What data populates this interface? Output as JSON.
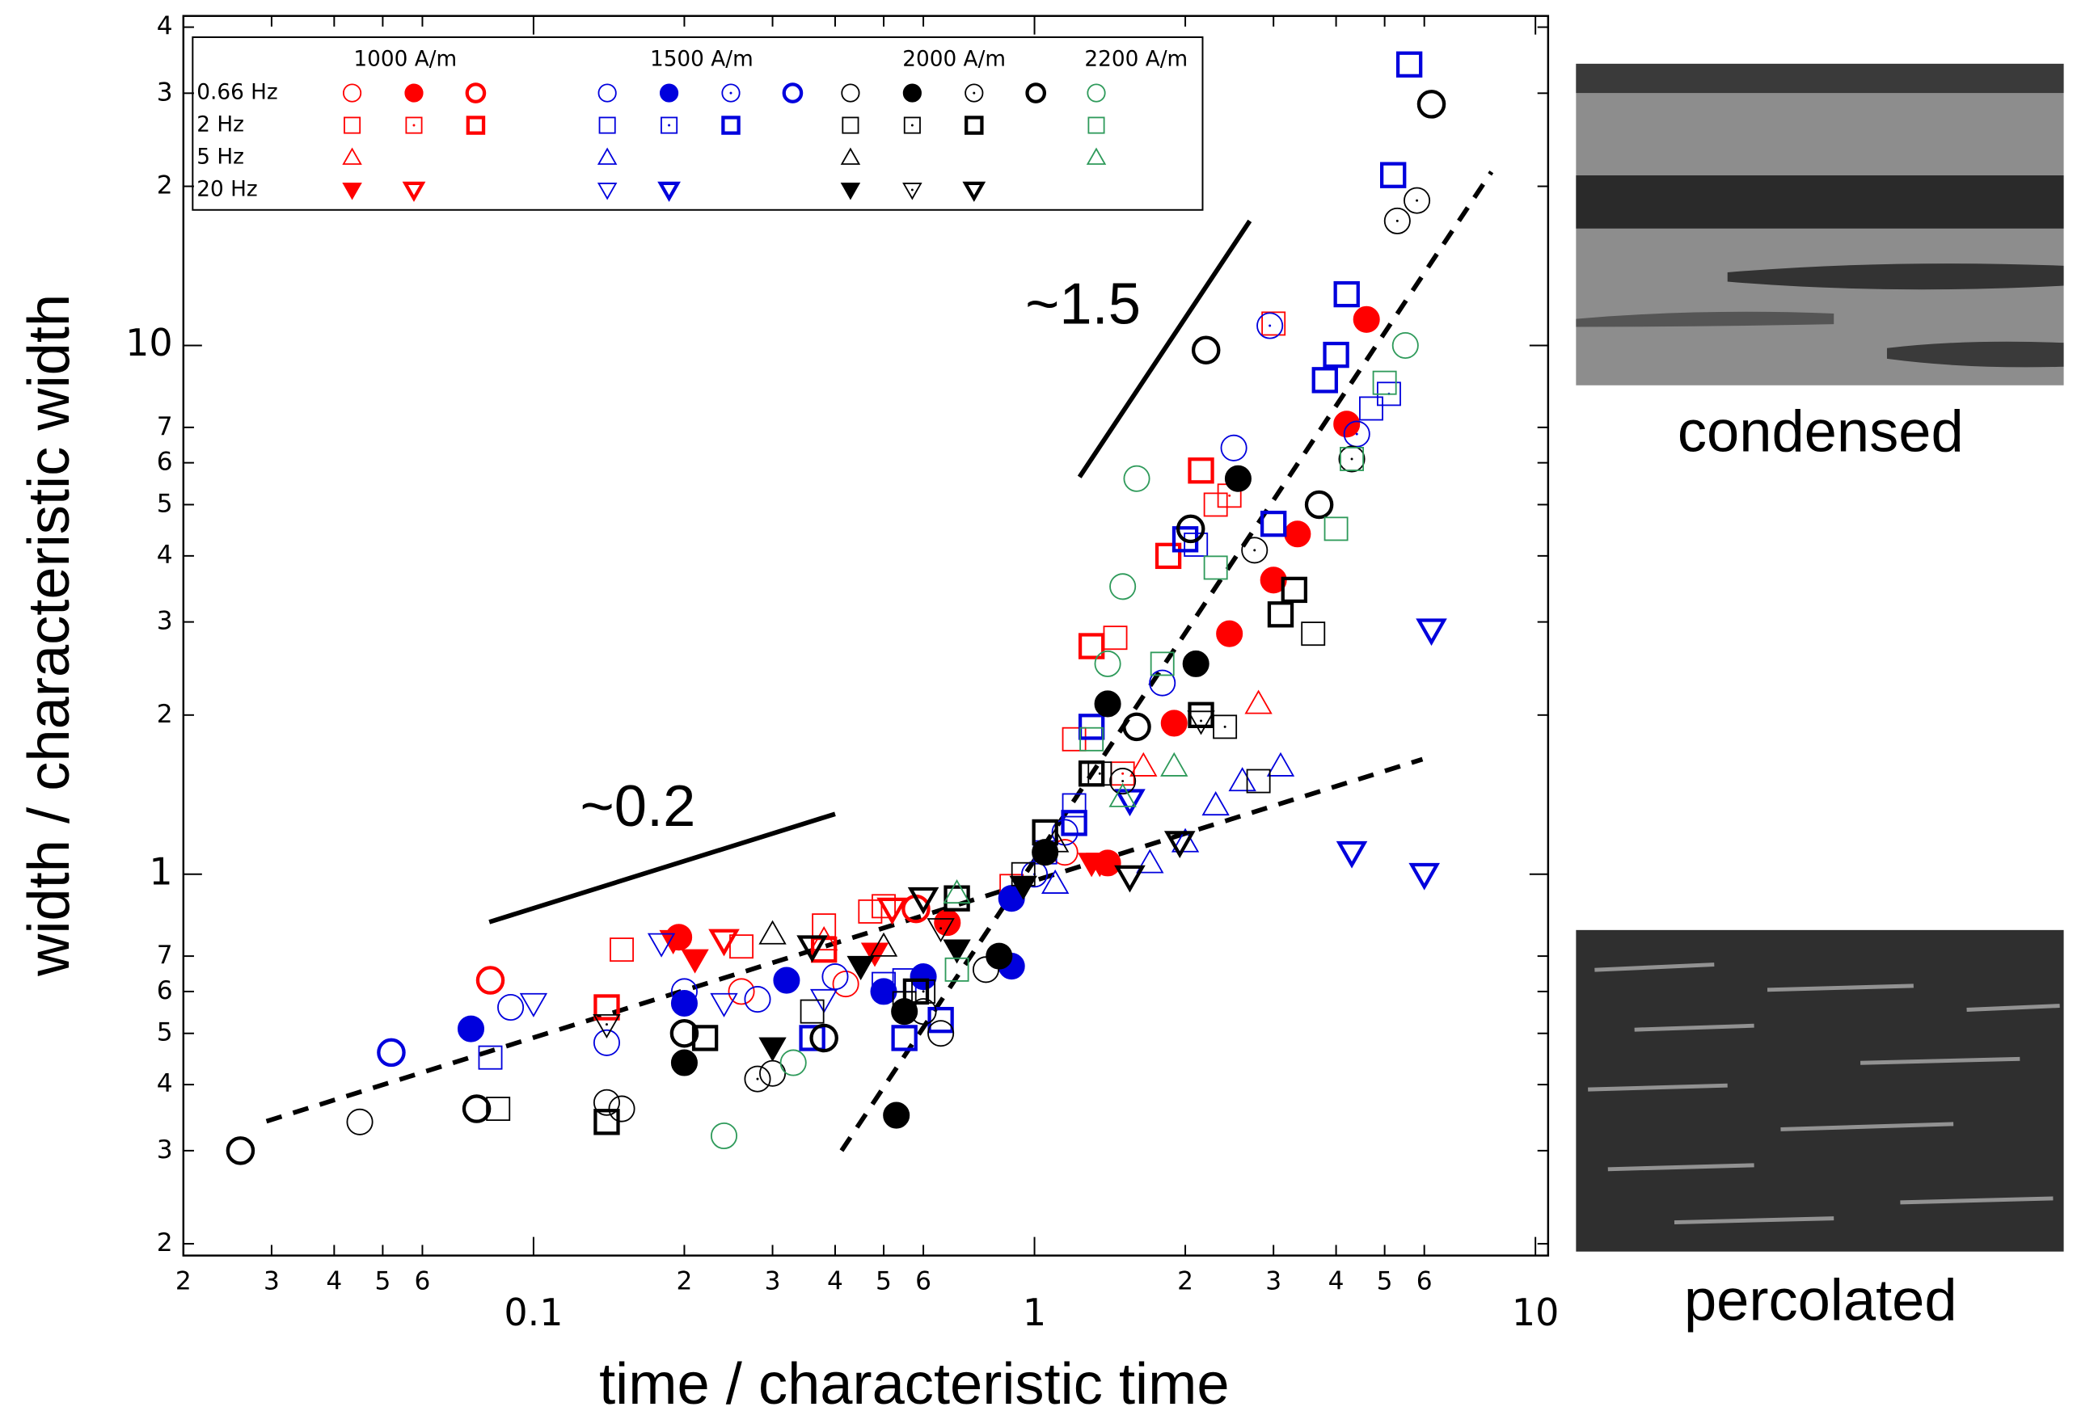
{
  "chart_data": {
    "type": "scatter",
    "x_label": "time / characteristic time",
    "y_label": "width / characteristic width",
    "xscale": "log",
    "yscale": "log",
    "xlim": [
      0.02,
      10.6
    ],
    "ylim": [
      0.19,
      42
    ],
    "xticks": [
      {
        "value": 0.02,
        "label": "2"
      },
      {
        "value": 0.03,
        "label": "3"
      },
      {
        "value": 0.04,
        "label": "4"
      },
      {
        "value": 0.05,
        "label": "5"
      },
      {
        "value": 0.06,
        "label": "6"
      },
      0.1,
      {
        "value": 0.2,
        "label": "2"
      },
      {
        "value": 0.3,
        "label": "3"
      },
      {
        "value": 0.4,
        "label": "4"
      },
      {
        "value": 0.5,
        "label": "5"
      },
      {
        "value": 0.6,
        "label": "6"
      },
      1,
      2,
      3,
      4,
      5,
      6,
      10
    ],
    "yticks": [
      {
        "value": 0.2,
        "label": "2"
      },
      {
        "value": 0.3,
        "label": "3"
      },
      {
        "value": 0.4,
        "label": "4"
      },
      {
        "value": 0.5,
        "label": "5"
      },
      {
        "value": 0.6,
        "label": "6"
      },
      {
        "value": 0.7,
        "label": "7"
      },
      1,
      2,
      3,
      4,
      5,
      6,
      7,
      10,
      {
        "value": 20,
        "label": "2"
      },
      {
        "value": 30,
        "label": "3"
      },
      {
        "value": 40,
        "label": "4"
      }
    ],
    "frequencies": [
      "0.66 Hz",
      "2 Hz",
      "5 Hz",
      "20 Hz"
    ],
    "fields": [
      {
        "name": "1000 A/m",
        "color": "#ff0000",
        "rows": [
          [
            {
              "marker": "circle",
              "style": "open",
              "x": [
                0.26,
                0.42,
                1.15
              ],
              "y": [
                0.6,
                0.62,
                1.1
              ]
            },
            {
              "marker": "circle",
              "style": "filled",
              "x": [
                0.195,
                0.67,
                1.4,
                1.9,
                2.45,
                3.0,
                3.35,
                4.2,
                4.6
              ],
              "y": [
                0.76,
                0.81,
                1.05,
                1.93,
                2.85,
                3.6,
                4.4,
                7.1,
                11.2
              ]
            },
            {
              "marker": "circle",
              "style": "thick",
              "x": [
                0.082,
                0.58
              ],
              "y": [
                0.63,
                0.86
              ]
            }
          ],
          [
            {
              "marker": "square",
              "style": "open",
              "x": [
                0.15,
                0.26,
                0.38,
                0.47,
                1.2,
                1.45,
                2.3,
                3.0
              ],
              "y": [
                0.72,
                0.73,
                0.8,
                0.85,
                1.8,
                2.8,
                5.0,
                11
              ]
            },
            {
              "marker": "square",
              "style": "dotted",
              "x": [
                0.5,
                0.9,
                1.5,
                2.45
              ],
              "y": [
                0.87,
                0.95,
                1.55,
                5.2
              ]
            },
            {
              "marker": "square",
              "style": "thick",
              "x": [
                0.14,
                0.38,
                1.3,
                1.85,
                2.15
              ],
              "y": [
                0.56,
                0.72,
                2.7,
                4.0,
                5.8
              ]
            }
          ],
          [
            {
              "marker": "triangle",
              "style": "open",
              "x": [
                0.38,
                1.65,
                2.8
              ],
              "y": [
                0.75,
                1.6,
                2.1
              ]
            }
          ],
          [
            {
              "marker": "down",
              "style": "filled",
              "x": [
                0.19,
                0.21,
                0.48,
                1.3,
                1.35
              ],
              "y": [
                0.75,
                0.69,
                0.71,
                1.05,
                1.05
              ]
            },
            {
              "marker": "down",
              "style": "thick",
              "x": [
                0.24,
                0.52
              ],
              "y": [
                0.75,
                0.86
              ]
            }
          ]
        ]
      },
      {
        "name": "1500 A/m",
        "color": "#0000dd",
        "rows": [
          [
            {
              "marker": "circle",
              "style": "open",
              "x": [
                0.09,
                0.14,
                0.2,
                0.28,
                0.4,
                1.15,
                1.8,
                2.5
              ],
              "y": [
                0.56,
                0.48,
                0.6,
                0.58,
                0.64,
                1.2,
                2.3,
                6.4
              ]
            },
            {
              "marker": "circle",
              "style": "filled",
              "x": [
                0.075,
                0.2,
                0.32,
                0.5,
                0.6,
                0.9,
                0.9
              ],
              "y": [
                0.51,
                0.57,
                0.63,
                0.6,
                0.64,
                0.67,
                0.9
              ]
            },
            {
              "marker": "circle",
              "style": "dotted",
              "x": [
                1.0,
                2.95,
                4.4
              ],
              "y": [
                1.0,
                10.9,
                6.8
              ]
            },
            {
              "marker": "circle",
              "style": "thick",
              "x": [
                0.052
              ],
              "y": [
                0.46
              ]
            }
          ],
          [
            {
              "marker": "square",
              "style": "open",
              "x": [
                0.082,
                0.5,
                1.2,
                2.1,
                4.7
              ],
              "y": [
                0.45,
                0.62,
                1.35,
                4.2,
                7.6
              ]
            },
            {
              "marker": "square",
              "style": "dotted",
              "x": [
                0.55,
                1.05,
                5.1
              ],
              "y": [
                0.63,
                1.1,
                8.1
              ]
            },
            {
              "marker": "square",
              "style": "thick",
              "x": [
                0.36,
                0.55,
                0.65,
                1.2,
                1.3,
                2.0,
                3.0,
                3.8,
                4.0,
                4.2,
                5.2,
                5.6
              ],
              "y": [
                0.49,
                0.49,
                0.53,
                1.25,
                1.9,
                4.3,
                4.6,
                8.6,
                9.6,
                12.5,
                21,
                34
              ]
            }
          ],
          [
            {
              "marker": "triangle",
              "style": "open",
              "x": [
                1.1,
                1.7,
                2.0,
                2.3,
                2.6,
                3.1
              ],
              "y": [
                0.96,
                1.05,
                1.15,
                1.35,
                1.5,
                1.6
              ]
            }
          ],
          [
            {
              "marker": "down",
              "style": "open",
              "x": [
                0.1,
                0.18,
                0.24,
                0.38
              ],
              "y": [
                0.57,
                0.74,
                0.57,
                0.58
              ]
            },
            {
              "marker": "down",
              "style": "thick",
              "x": [
                1.55,
                4.3,
                6.0,
                6.2
              ],
              "y": [
                1.38,
                1.1,
                1.0,
                2.9
              ]
            }
          ]
        ]
      },
      {
        "name": "2000 A/m",
        "color": "#000000",
        "rows": [
          [
            {
              "marker": "circle",
              "style": "open",
              "x": [
                0.045,
                0.14,
                0.15,
                0.3,
                0.6,
                0.65,
                0.8
              ],
              "y": [
                0.34,
                0.37,
                0.36,
                0.42,
                0.55,
                0.5,
                0.66
              ]
            },
            {
              "marker": "circle",
              "style": "filled",
              "x": [
                0.2,
                0.53,
                0.55,
                0.85,
                1.05,
                1.4,
                2.1,
                2.55
              ],
              "y": [
                0.44,
                0.35,
                0.55,
                0.7,
                1.1,
                2.1,
                2.5,
                5.6
              ]
            },
            {
              "marker": "circle",
              "style": "dotted",
              "x": [
                0.28,
                1.5,
                2.75,
                4.3,
                5.3,
                5.8
              ],
              "y": [
                0.41,
                1.5,
                4.1,
                6.1,
                17.2,
                18.8
              ]
            },
            {
              "marker": "circle",
              "style": "thick",
              "x": [
                0.026,
                0.077,
                0.2,
                0.38,
                1.6,
                2.05,
                2.2,
                3.7,
                6.2
              ],
              "y": [
                0.3,
                0.36,
                0.5,
                0.49,
                1.9,
                4.5,
                9.8,
                5.0,
                28.6
              ]
            }
          ],
          [
            {
              "marker": "square",
              "style": "open",
              "x": [
                0.085,
                0.36,
                0.55,
                0.95,
                2.8,
                3.6
              ],
              "y": [
                0.36,
                0.55,
                0.57,
                1.0,
                1.5,
                2.85
              ]
            },
            {
              "marker": "square",
              "style": "dotted",
              "x": [
                0.6,
                1.35,
                2.4
              ],
              "y": [
                0.6,
                1.55,
                1.9
              ]
            },
            {
              "marker": "square",
              "style": "thick",
              "x": [
                0.14,
                0.22,
                0.58,
                0.7,
                1.05,
                1.3,
                2.15,
                3.1,
                3.3
              ],
              "y": [
                0.34,
                0.49,
                0.6,
                0.9,
                1.2,
                1.55,
                2.0,
                3.1,
                3.45
              ]
            }
          ],
          [
            {
              "marker": "triangle",
              "style": "open",
              "x": [
                0.3,
                0.5,
                1.1
              ],
              "y": [
                0.77,
                0.73,
                1.15
              ]
            }
          ],
          [
            {
              "marker": "down",
              "style": "filled",
              "x": [
                0.3,
                0.45,
                0.7,
                0.95
              ],
              "y": [
                0.47,
                0.67,
                0.72,
                0.95
              ]
            },
            {
              "marker": "down",
              "style": "dotted",
              "x": [
                0.14,
                0.65,
                2.15
              ],
              "y": [
                0.52,
                0.79,
                1.95
              ]
            },
            {
              "marker": "down",
              "style": "thick",
              "x": [
                0.36,
                0.6,
                1.55,
                1.95
              ],
              "y": [
                0.73,
                0.9,
                0.99,
                1.15
              ]
            }
          ]
        ]
      },
      {
        "name": "2200 A/m",
        "color": "#2e9a5a",
        "rows": [
          [
            {
              "marker": "circle",
              "style": "open",
              "x": [
                0.24,
                0.33,
                1.4,
                1.5,
                1.6,
                5.5
              ],
              "y": [
                0.32,
                0.44,
                2.5,
                3.5,
                5.6,
                10
              ]
            }
          ],
          [
            {
              "marker": "square",
              "style": "open",
              "x": [
                0.7,
                1.3,
                1.8,
                2.3,
                4.0,
                4.3,
                5.0
              ],
              "y": [
                0.66,
                1.8,
                2.5,
                3.8,
                4.5,
                6.1,
                8.5
              ]
            }
          ],
          [
            {
              "marker": "triangle",
              "style": "open",
              "x": [
                0.7,
                1.5,
                1.9
              ],
              "y": [
                0.92,
                1.4,
                1.6
              ]
            }
          ],
          []
        ]
      }
    ],
    "fit_lines": [
      {
        "dash": true,
        "x": [
          0.0293,
          5.95
        ],
        "y": [
          0.341,
          1.65
        ]
      },
      {
        "dash": true,
        "x": [
          0.412,
          8.17
        ],
        "y": [
          0.3,
          21.3
        ]
      },
      {
        "dash": false,
        "x": [
          0.0816,
          0.4
        ],
        "y": [
          0.812,
          1.3
        ]
      },
      {
        "dash": false,
        "x": [
          1.23,
          2.69
        ],
        "y": [
          5.64,
          17.2
        ]
      }
    ],
    "annotations": [
      "~0.2",
      "~1.5"
    ]
  },
  "panels": [
    "condensed",
    "percolated"
  ]
}
